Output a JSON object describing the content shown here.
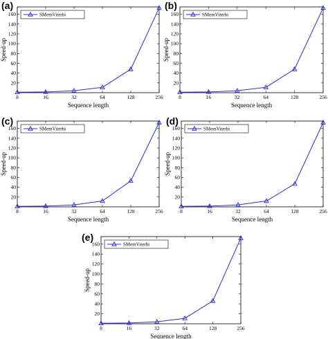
{
  "chart_data": [
    {
      "type": "line",
      "panel_label": "(a)",
      "xlabel": "Sequence length",
      "ylabel": "Speed-up",
      "x": [
        "8",
        "16",
        "32",
        "64",
        "128",
        "256"
      ],
      "yticks": [
        "20",
        "40",
        "60",
        "80",
        "100",
        "120",
        "140",
        "160"
      ],
      "ylim": [
        0,
        175
      ],
      "grid": false,
      "legend_position": "top-left",
      "series": [
        {
          "name": "SMemViterbi",
          "color": "#2b2bd6",
          "values": [
            1,
            1.5,
            4,
            11,
            48,
            173
          ]
        }
      ]
    },
    {
      "type": "line",
      "panel_label": "(b)",
      "xlabel": "Sequence length",
      "ylabel": "Speed-up",
      "x": [
        "8",
        "16",
        "32",
        "64",
        "128",
        "256"
      ],
      "yticks": [
        "20",
        "40",
        "60",
        "80",
        "100",
        "120",
        "140",
        "160"
      ],
      "ylim": [
        0,
        175
      ],
      "grid": false,
      "legend_position": "top-left",
      "series": [
        {
          "name": "SMemViterbi",
          "color": "#2b2bd6",
          "values": [
            1,
            1.5,
            4,
            11,
            48,
            173
          ]
        }
      ]
    },
    {
      "type": "line",
      "panel_label": "(c)",
      "xlabel": "Sequence length",
      "ylabel": "Speed-up",
      "x": [
        "8",
        "16",
        "32",
        "64",
        "128",
        "256"
      ],
      "yticks": [
        "20",
        "40",
        "60",
        "80",
        "100",
        "120",
        "140",
        "160"
      ],
      "ylim": [
        0,
        175
      ],
      "grid": false,
      "legend_position": "top-left",
      "series": [
        {
          "name": "SMemViterbi",
          "color": "#2b2bd6",
          "values": [
            1,
            1.5,
            4,
            12,
            53,
            172
          ]
        }
      ]
    },
    {
      "type": "line",
      "panel_label": "(d)",
      "xlabel": "Sequence length",
      "ylabel": "Speed-up",
      "x": [
        "8",
        "16",
        "32",
        "64",
        "128",
        "256"
      ],
      "yticks": [
        "20",
        "40",
        "60",
        "80",
        "100",
        "120",
        "140",
        "160"
      ],
      "ylim": [
        0,
        175
      ],
      "grid": false,
      "legend_position": "top-left",
      "series": [
        {
          "name": "SMemViterbi",
          "color": "#2b2bd6",
          "values": [
            1,
            1.5,
            4,
            12,
            47,
            172
          ]
        }
      ]
    },
    {
      "type": "line",
      "panel_label": "(e)",
      "xlabel": "Sequence length",
      "ylabel": "Speed-up",
      "x": [
        "8",
        "16",
        "32",
        "64",
        "128",
        "256"
      ],
      "yticks": [
        "20",
        "40",
        "60",
        "80",
        "100",
        "120",
        "140",
        "160"
      ],
      "ylim": [
        0,
        175
      ],
      "grid": false,
      "legend_position": "top-left",
      "series": [
        {
          "name": "SMemViterbi",
          "color": "#2b2bd6",
          "values": [
            1,
            1.5,
            4,
            11,
            46,
            172
          ]
        }
      ]
    }
  ]
}
